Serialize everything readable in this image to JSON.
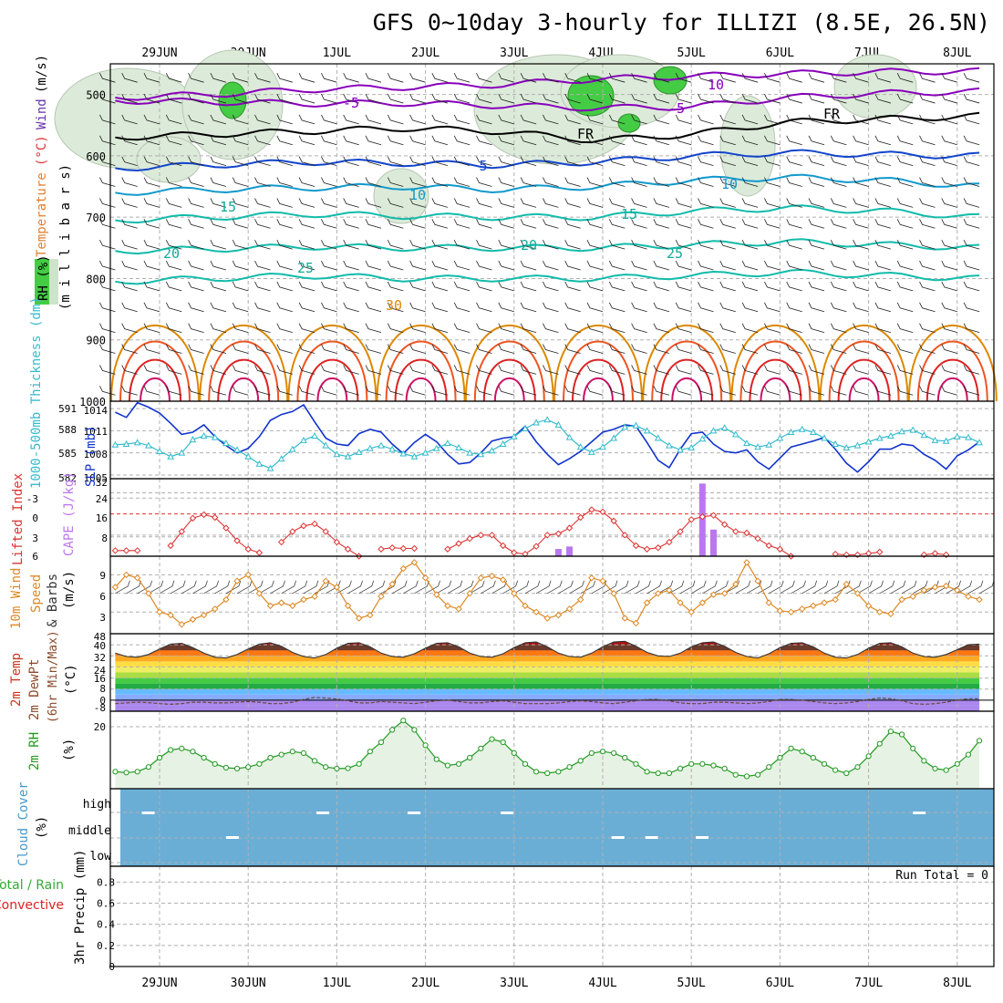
{
  "title": "GFS 0~10day 3-hourly for ILLIZI (8.5E, 26.5N)",
  "colors": {
    "grid": "#b0b0b0",
    "sounding_temp_cold": "#8800bb",
    "sounding_temp_fr": "#000000",
    "sounding_temp_cool": "#1144cc",
    "sounding_temp_mid": "#1199cc",
    "sounding_temp_warm": "#11bbaa",
    "sounding_temp_hot": "#dd8800",
    "sounding_temp_hottest": "#dd2222",
    "rh_fill": "#44cc44",
    "slp": "#1133cc",
    "thickness": "#33bbcc",
    "lifted_index": "#dd3333",
    "cape": "#bb77ee",
    "wind": "#dd8822",
    "rh2m": "#229922",
    "cloud_bg": "#6aaed6",
    "precip_total": "#33aa33",
    "precip_conv": "#dd2222"
  },
  "chart_data": [
    {
      "id": "sounding",
      "type": "heatmap",
      "ylabel_parts": [
        "RH (%)",
        "Temperature",
        "(°C)",
        "Wind",
        "(m/s)"
      ],
      "ylabel2": "(m i l l i b a r s)",
      "yticks": [
        "500",
        "600",
        "700",
        "800",
        "900",
        "1000"
      ],
      "y_levels_mb": [
        500,
        600,
        700,
        800,
        900,
        1000
      ],
      "ylim": [
        1000,
        450
      ],
      "x_top_labels": [
        "29JUN",
        "30JUN",
        "1JUL",
        "2JUL",
        "3JUL",
        "4JUL",
        "5JUL",
        "6JUL",
        "7JUL",
        "8JUL"
      ],
      "contour_labels": [
        "-5",
        "-5",
        "10",
        "FR",
        "FR",
        "5",
        "10",
        "10",
        "15",
        "15",
        "20",
        "20",
        "25",
        "25",
        "30"
      ],
      "isotherms": [
        {
          "name": "-10",
          "level_mb": [
            505,
            500,
            492,
            488,
            484,
            475,
            470,
            466,
            463,
            462
          ]
        },
        {
          "name": "-5",
          "level_mb": [
            510,
            512,
            515,
            514,
            518,
            522,
            520,
            505,
            498,
            495
          ]
        },
        {
          "name": "FR",
          "level_mb": [
            570,
            565,
            560,
            555,
            560,
            575,
            565,
            545,
            540,
            535
          ]
        },
        {
          "name": "5",
          "level_mb": [
            620,
            615,
            610,
            612,
            615,
            610,
            600,
            595,
            598,
            600
          ]
        },
        {
          "name": "10",
          "level_mb": [
            660,
            655,
            652,
            650,
            655,
            650,
            640,
            635,
            640,
            650
          ]
        },
        {
          "name": "15",
          "level_mb": [
            705,
            700,
            695,
            698,
            700,
            700,
            690,
            685,
            690,
            700
          ]
        },
        {
          "name": "20",
          "level_mb": [
            755,
            752,
            748,
            750,
            750,
            750,
            745,
            740,
            745,
            750
          ]
        },
        {
          "name": "25",
          "level_mb": [
            805,
            800,
            795,
            800,
            800,
            800,
            795,
            790,
            795,
            800
          ]
        }
      ]
    },
    {
      "id": "slp_thickness",
      "type": "line",
      "ylabel_left": "1000-500mb Thickness (dm)",
      "ylabel_right": "SLP (mb)",
      "yticks_left": [
        "591",
        "588",
        "585",
        "582"
      ],
      "yticks_right": [
        "1014",
        "1011",
        "1008",
        "1005"
      ],
      "ylim_slp": [
        1005,
        1015
      ],
      "series": [
        {
          "name": "SLP (mb)",
          "values": [
            1013.5,
            1012.8,
            1014.8,
            1014.2,
            1013.4,
            1012.0,
            1010.5,
            1010.8,
            1011.8,
            1010.2,
            1009.0,
            1008.0,
            1008.6,
            1010.2,
            1012.4,
            1013.2,
            1013.6,
            1014.5,
            1012.2,
            1010.0,
            1009.2,
            1009.0,
            1010.6,
            1011.2,
            1010.8,
            1009.2,
            1007.9,
            1009.4,
            1010.5,
            1009.5,
            1007.8,
            1006.5,
            1006.7,
            1008.0,
            1009.6,
            1010.0,
            1010.2,
            1011.6,
            1009.5,
            1007.8,
            1006.4,
            1007.2,
            1008.2,
            1009.5,
            1010.8,
            1011.2,
            1011.8,
            1011.6,
            1009.4,
            1007.0,
            1006.0,
            1008.5,
            1010.6,
            1010.8,
            1009.2,
            1008.2,
            1008.0,
            1008.4,
            1006.8,
            1005.8,
            1007.3,
            1008.8,
            1009.2,
            1009.6,
            1010.1,
            1008.5,
            1006.6,
            1005.4,
            1006.8,
            1008.5,
            1008.5,
            1009.2,
            1009.0,
            1007.8,
            1007.0,
            1005.8,
            1007.6,
            1008.4,
            1009.5
          ]
        },
        {
          "name": "Thickness (dm)",
          "values": [
            586.1,
            586.2,
            586.4,
            586.0,
            585.2,
            584.5,
            585.0,
            586.8,
            587.3,
            587.1,
            586.3,
            585.4,
            584.5,
            583.5,
            582.9,
            584.2,
            585.5,
            586.7,
            587.3,
            586.0,
            584.8,
            584.5,
            585.1,
            585.6,
            586.0,
            585.5,
            584.9,
            584.5,
            585.0,
            585.6,
            586.3,
            585.7,
            585.0,
            584.8,
            585.3,
            586.2,
            587.2,
            588.3,
            589.1,
            589.5,
            588.8,
            587.1,
            585.8,
            585.1,
            585.8,
            587.0,
            588.5,
            588.7,
            588.0,
            587.0,
            586.0,
            585.4,
            585.7,
            586.9,
            588.0,
            588.4,
            587.5,
            586.3,
            585.8,
            586.1,
            587.0,
            587.8,
            588.2,
            587.8,
            587.0,
            586.2,
            585.7,
            586.0,
            586.5,
            587.0,
            587.3,
            587.9,
            588.1,
            587.4,
            586.7,
            586.6,
            587.2,
            587.1,
            586.4
          ]
        }
      ]
    },
    {
      "id": "li_cape",
      "type": "bar",
      "ylabel_left": "Lifted Index",
      "ylabel_right": "CAPE (J/kg)",
      "yticks_left": [
        "-3",
        "0",
        "3",
        "6"
      ],
      "yticks_right": [
        "32",
        "24",
        "16",
        "8"
      ],
      "ylim_cape": [
        0,
        32
      ],
      "series": [
        {
          "name": "Lifted Index",
          "values": [
            5.2,
            5.2,
            5.2,
            null,
            null,
            4.5,
            2.5,
            0.6,
            0.1,
            0.5,
            2.0,
            3.8,
            5.0,
            5.5,
            null,
            4.0,
            2.5,
            1.7,
            1.4,
            2.5,
            4.0,
            5.0,
            6.0,
            null,
            5.0,
            4.8,
            4.9,
            4.9,
            null,
            null,
            5.0,
            4.2,
            3.5,
            3.0,
            3.0,
            4.5,
            5.5,
            5.7,
            4.6,
            3.0,
            2.8,
            2.0,
            0.5,
            -0.6,
            -0.3,
            1.0,
            3.0,
            4.5,
            5.0,
            4.8,
            4.0,
            2.5,
            0.8,
            0.4,
            0.2,
            1.5,
            2.5,
            2.7,
            3.5,
            4.5,
            5.0,
            6.0,
            null,
            null,
            null,
            5.7,
            5.8,
            5.8,
            5.6,
            5.4,
            null,
            null,
            null,
            5.8,
            5.6,
            5.8,
            null,
            null,
            null
          ]
        },
        {
          "name": "CAPE (J/kg)",
          "values": [
            0,
            0,
            0,
            0,
            0,
            0,
            0,
            0,
            0,
            0,
            0,
            0,
            0,
            0,
            0,
            0,
            0,
            0,
            0,
            0,
            0,
            0,
            0,
            0,
            0,
            0,
            0,
            0,
            0,
            0,
            0,
            0,
            0,
            0,
            0,
            0,
            0,
            0,
            0,
            0,
            3,
            4,
            0,
            0,
            0,
            0,
            0,
            0,
            0,
            0,
            0,
            0,
            0,
            30,
            11,
            0,
            0,
            0,
            0,
            0,
            0,
            0,
            0,
            0,
            0,
            0,
            0,
            0,
            0,
            0,
            0,
            0,
            0,
            0,
            0,
            0,
            0,
            0,
            0
          ]
        }
      ]
    },
    {
      "id": "wind10m",
      "type": "line",
      "ylabel": "10m Wind Speed (m/s) & Barbs",
      "ylabel_parts": [
        "10m Wind",
        "Speed",
        "(m/s)",
        "& Barbs"
      ],
      "yticks": [
        "9",
        "6",
        "3"
      ],
      "ylim": [
        0,
        12
      ],
      "series": [
        {
          "name": "10m Wind Speed",
          "values": [
            7.0,
            9.0,
            8.5,
            6.0,
            3.0,
            2.5,
            1.0,
            1.8,
            2.5,
            3.5,
            5.0,
            8.0,
            9.0,
            6.0,
            4.0,
            4.5,
            4.0,
            5.0,
            5.5,
            8.0,
            7.0,
            4.0,
            2.0,
            2.5,
            5.5,
            7.5,
            10.0,
            11.0,
            8.5,
            5.8,
            4.0,
            3.5,
            6.0,
            8.5,
            8.8,
            8.2,
            6.0,
            4.0,
            3.0,
            2.0,
            2.5,
            3.5,
            5.0,
            8.5,
            8.0,
            6.0,
            2.0,
            1.2,
            4.5,
            6.0,
            6.5,
            4.5,
            3.0,
            4.5,
            5.8,
            6.0,
            7.5,
            11.0,
            8.0,
            4.5,
            3.2,
            3.0,
            3.5,
            4.0,
            4.5,
            5.0,
            7.5,
            6.0,
            4.0,
            3.0,
            2.7,
            5.0,
            5.5,
            6.5,
            7.0,
            7.2,
            6.5,
            5.5,
            5.0
          ]
        }
      ]
    },
    {
      "id": "temp2m",
      "type": "area",
      "ylabel_parts": [
        "2m Temp",
        "2m DewPt",
        "(6hr Min/Max)",
        "(°C)"
      ],
      "yticks": [
        "48",
        "40",
        "32",
        "24",
        "16",
        "8",
        "0",
        "-8"
      ],
      "ylim": [
        -8,
        48
      ],
      "series": [
        {
          "name": "2m Temp",
          "values": [
            34.0,
            31.5,
            31.0,
            33.0,
            37.0,
            40.5,
            41.0,
            38.0,
            34.0,
            31.0,
            30.5,
            33.0,
            37.0,
            40.5,
            41.5,
            39.0,
            34.5,
            31.5,
            30.5,
            33.0,
            37.5,
            41.0,
            41.5,
            38.5,
            34.0,
            31.5,
            31.0,
            33.5,
            37.5,
            41.0,
            41.5,
            38.5,
            34.0,
            31.5,
            31.0,
            33.5,
            38.0,
            41.5,
            42.0,
            38.5,
            34.0,
            31.5,
            31.0,
            34.0,
            38.5,
            42.0,
            42.5,
            39.0,
            34.5,
            32.0,
            31.5,
            34.0,
            38.5,
            41.5,
            42.0,
            39.0,
            34.5,
            31.5,
            30.5,
            33.5,
            38.0,
            41.0,
            41.5,
            38.5,
            34.0,
            31.0,
            30.5,
            33.0,
            37.5,
            41.0,
            41.5,
            38.5,
            34.0,
            31.5,
            31.0,
            33.0,
            36.5,
            40.0,
            40.5
          ]
        },
        {
          "name": "2m DewPt",
          "values": [
            -2.5,
            -2.0,
            -1.5,
            -1.8,
            -2.5,
            -3.0,
            -2.5,
            -1.5,
            -1.5,
            -2.0,
            -2.0,
            -1.5,
            -1.0,
            -1.5,
            -2.5,
            -2.5,
            -1.5,
            0.5,
            2.0,
            1.5,
            0.8,
            -0.5,
            -2.0,
            -2.0,
            -1.0,
            -1.5,
            -2.0,
            -2.5,
            -1.5,
            -0.5,
            0.0,
            -1.0,
            -2.0,
            -2.0,
            -1.0,
            -0.5,
            -1.5,
            -2.5,
            -2.5,
            -2.5,
            -2.0,
            -1.0,
            -0.5,
            -1.0,
            -2.0,
            -2.5,
            -1.5,
            -0.5,
            0.5,
            0.5,
            -0.5,
            -2.0,
            -2.5,
            -2.5,
            -1.5,
            -1.5,
            -2.0,
            -2.5,
            -2.0,
            -1.0,
            0.5,
            0.5,
            0.0,
            -1.0,
            -2.0,
            -2.5,
            -2.0,
            -1.0,
            0.5,
            1.5,
            1.0,
            -0.5,
            -2.5,
            -3.0,
            -2.5,
            -1.5,
            0.0,
            1.0,
            1.0
          ]
        }
      ]
    },
    {
      "id": "rh2m",
      "type": "area",
      "ylabel_left": "2m RH",
      "ylabel_right": "(%)",
      "yticks": [
        "20"
      ],
      "ylim": [
        0,
        25
      ],
      "series": [
        {
          "name": "2m RH",
          "values": [
            5.5,
            5.2,
            5.5,
            7.0,
            10.0,
            12.5,
            13.0,
            12.0,
            10.0,
            8.0,
            6.8,
            6.5,
            7.0,
            8.0,
            10.0,
            11.0,
            12.0,
            11.5,
            9.0,
            7.0,
            6.5,
            6.6,
            8.0,
            12.0,
            15.0,
            19.0,
            22.0,
            19.0,
            14.0,
            9.5,
            7.5,
            8.0,
            10.0,
            13.0,
            16.0,
            15.0,
            11.5,
            8.0,
            5.5,
            5.0,
            5.5,
            7.0,
            9.0,
            11.5,
            12.0,
            11.5,
            10.0,
            8.0,
            5.5,
            5.0,
            5.0,
            6.5,
            8.0,
            8.0,
            7.5,
            6.5,
            4.5,
            4.0,
            4.5,
            7.0,
            10.0,
            13.0,
            12.0,
            10.0,
            8.0,
            6.0,
            5.0,
            7.0,
            10.5,
            14.5,
            18.5,
            17.5,
            13.0,
            9.0,
            6.5,
            6.0,
            8.0,
            11.0,
            15.5
          ]
        }
      ]
    },
    {
      "id": "cloud",
      "type": "heatmap",
      "ylabel": "Cloud Cover (%)",
      "ylabel_parts": [
        "Cloud Cover",
        "(%)"
      ],
      "row_labels": [
        "high",
        "middle",
        "low"
      ],
      "cells": [
        {
          "day": 0.3,
          "row": "high",
          "cover": 1
        },
        {
          "day": 1.25,
          "row": "middle",
          "cover": 1
        },
        {
          "day": 2.27,
          "row": "high",
          "cover": 1
        },
        {
          "day": 3.3,
          "row": "high",
          "cover": 1
        },
        {
          "day": 4.35,
          "row": "high",
          "cover": 1
        },
        {
          "day": 5.6,
          "row": "middle",
          "cover": 1
        },
        {
          "day": 5.98,
          "row": "middle",
          "cover": 1
        },
        {
          "day": 6.55,
          "row": "middle",
          "cover": 1
        },
        {
          "day": 9.0,
          "row": "high",
          "cover": 1
        }
      ]
    },
    {
      "id": "precip",
      "type": "bar",
      "ylabel_parts": [
        "Total / Rain",
        "Convective",
        "3hr Precip (mm)"
      ],
      "yticks": [
        "0.8",
        "0.6",
        "0.4",
        "0.2",
        "0"
      ],
      "ylim": [
        0,
        1
      ],
      "run_total": "Run Total = 0",
      "x_bottom_labels": [
        "29JUN",
        "30JUN",
        "1JUL",
        "2JUL",
        "3JUL",
        "4JUL",
        "5JUL",
        "6JUL",
        "7JUL",
        "8JUL"
      ],
      "values": []
    }
  ]
}
